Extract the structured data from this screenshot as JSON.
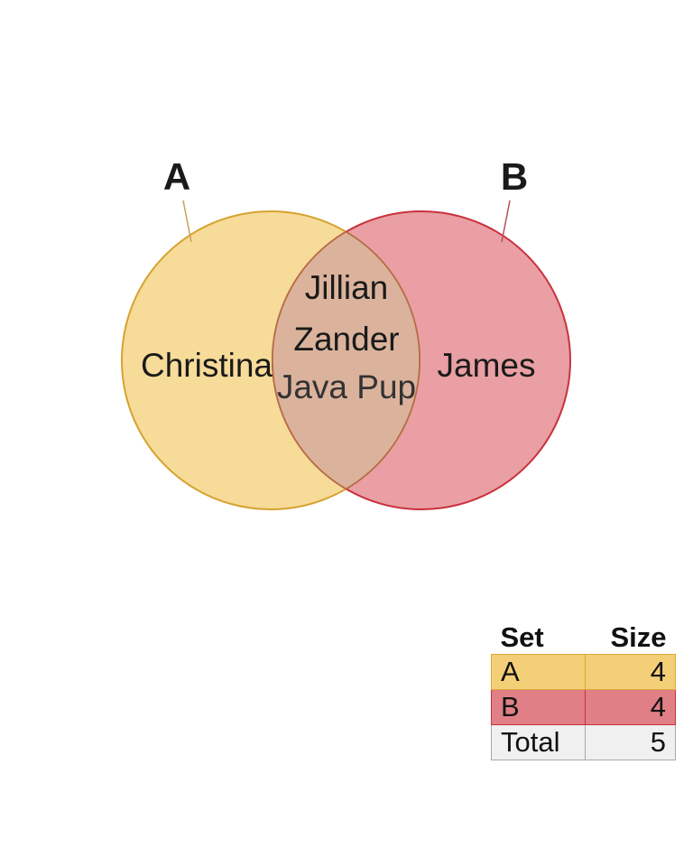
{
  "sets": [
    {
      "label": "A",
      "fill": "#f3cd72",
      "stroke": "#d6a22f",
      "only_members": [
        "Christina"
      ]
    },
    {
      "label": "B",
      "fill": "#e07a80",
      "stroke": "#c9323c",
      "only_members": [
        "James"
      ]
    }
  ],
  "intersection": {
    "members": [
      "Jillian",
      "Zander",
      "Java Pup"
    ],
    "fill": "#dbb39c",
    "stroke": "#b86c45"
  },
  "table": {
    "headers": {
      "set": "Set",
      "size": "Size"
    },
    "rows": [
      {
        "set": "A",
        "size": "4",
        "fill": "#f3cf78",
        "border": "#d9aa36"
      },
      {
        "set": "B",
        "size": "4",
        "fill": "#e07f85",
        "border": "#c9323c"
      },
      {
        "set": "Total",
        "size": "5",
        "fill": "#f0f0f0",
        "border": "#a8a8a8"
      }
    ]
  }
}
